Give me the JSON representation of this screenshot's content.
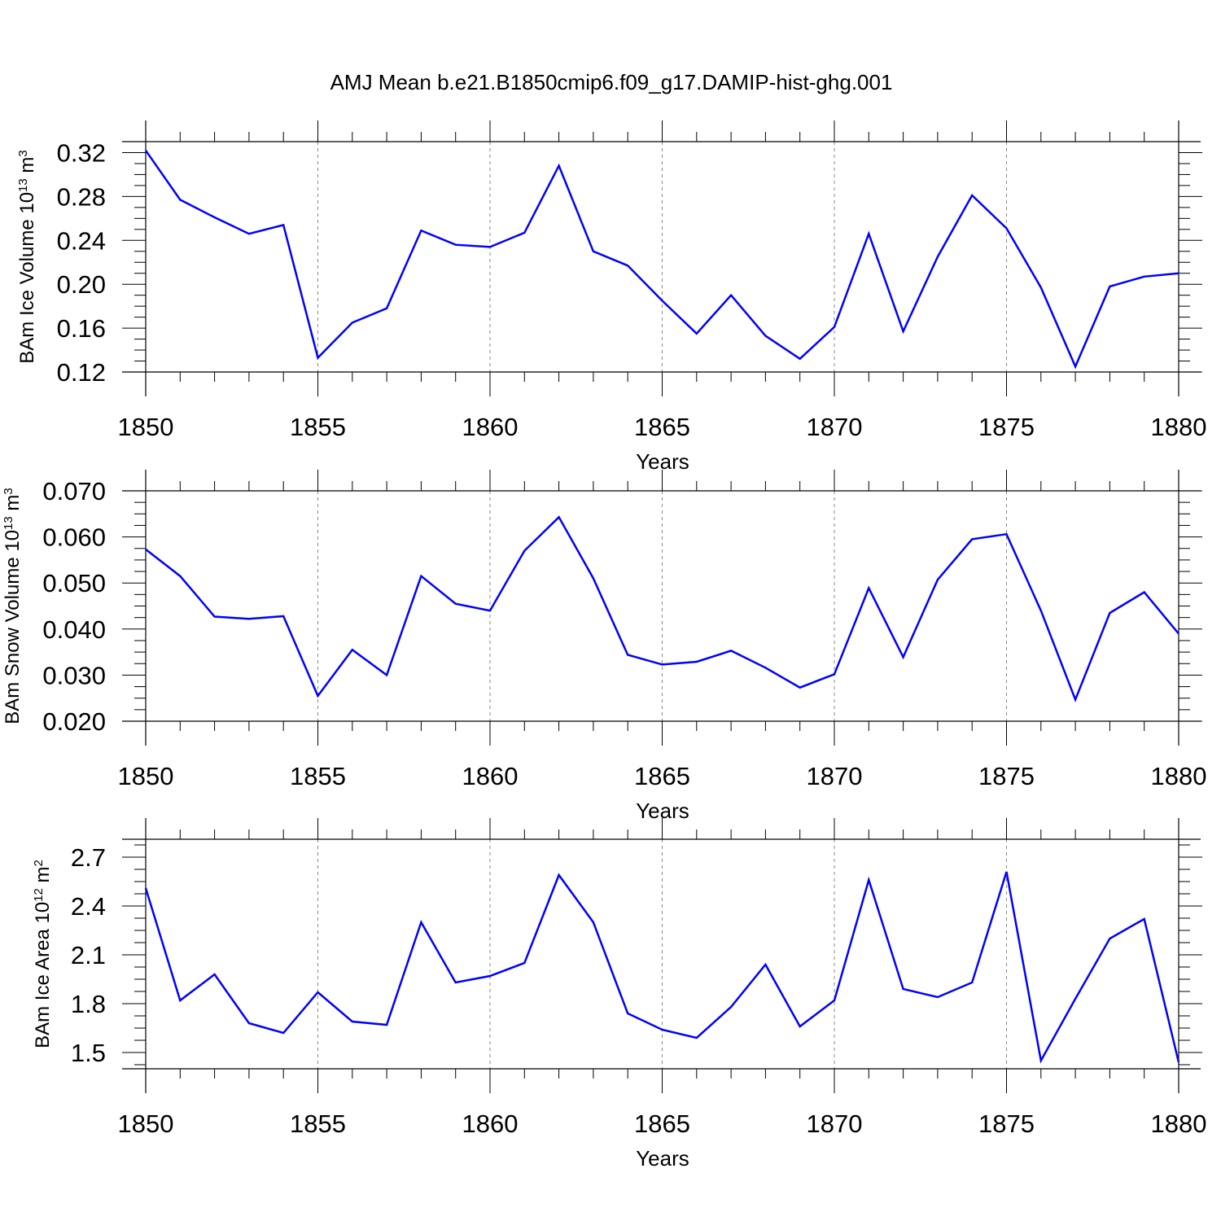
{
  "chart_data": [
    {
      "type": "line",
      "panel": "top",
      "title": "AMJ Mean b.e21.B1850cmip6.f09_g17.DAMIP-hist-ghg.001",
      "ylabel_main": "BAm Ice Volume 10",
      "ylabel_exp": "13",
      "ylabel_unit": "m",
      "ylabel_unit_exp": "3",
      "xlabel": "Years",
      "xlim": [
        1850,
        1880
      ],
      "ylim": [
        0.12,
        0.33
      ],
      "yticks": [
        0.12,
        0.16,
        0.2,
        0.24,
        0.28,
        0.32
      ],
      "ytick_labels": [
        "0.12",
        "0.16",
        "0.20",
        "0.24",
        "0.28",
        "0.32"
      ],
      "xticks": [
        1850,
        1855,
        1860,
        1865,
        1870,
        1875,
        1880
      ],
      "xtick_labels": [
        "1850",
        "1855",
        "1860",
        "1865",
        "1870",
        "1875",
        "1880"
      ],
      "grid": "x-dashed",
      "color": "#0000ff",
      "x": [
        1850,
        1851,
        1852,
        1853,
        1854,
        1855,
        1856,
        1857,
        1858,
        1859,
        1860,
        1861,
        1862,
        1863,
        1864,
        1865,
        1866,
        1867,
        1868,
        1869,
        1870,
        1871,
        1872,
        1873,
        1874,
        1875,
        1876,
        1877,
        1878,
        1879,
        1880
      ],
      "values": [
        0.322,
        0.277,
        0.261,
        0.246,
        0.254,
        0.133,
        0.165,
        0.178,
        0.249,
        0.236,
        0.234,
        0.247,
        0.308,
        0.23,
        0.217,
        0.185,
        0.155,
        0.19,
        0.153,
        0.132,
        0.161,
        0.246,
        0.157,
        0.225,
        0.281,
        0.251,
        0.197,
        0.125,
        0.198,
        0.207,
        0.21
      ]
    },
    {
      "type": "line",
      "panel": "middle",
      "ylabel_main": "BAm Snow Volume 10",
      "ylabel_exp": "13",
      "ylabel_unit": "m",
      "ylabel_unit_exp": "3",
      "xlabel": "Years",
      "xlim": [
        1850,
        1880
      ],
      "ylim": [
        0.02,
        0.07
      ],
      "yticks": [
        0.02,
        0.03,
        0.04,
        0.05,
        0.06,
        0.07
      ],
      "ytick_labels": [
        "0.020",
        "0.030",
        "0.040",
        "0.050",
        "0.060",
        "0.070"
      ],
      "xticks": [
        1850,
        1855,
        1860,
        1865,
        1870,
        1875,
        1880
      ],
      "xtick_labels": [
        "1850",
        "1855",
        "1860",
        "1865",
        "1870",
        "1875",
        "1880"
      ],
      "grid": "x-dashed",
      "color": "#0000ff",
      "x": [
        1850,
        1851,
        1852,
        1853,
        1854,
        1855,
        1856,
        1857,
        1858,
        1859,
        1860,
        1861,
        1862,
        1863,
        1864,
        1865,
        1866,
        1867,
        1868,
        1869,
        1870,
        1871,
        1872,
        1873,
        1874,
        1875,
        1876,
        1877,
        1878,
        1879,
        1880
      ],
      "values": [
        0.0573,
        0.0515,
        0.0427,
        0.0422,
        0.0428,
        0.0255,
        0.0355,
        0.03,
        0.0515,
        0.0455,
        0.044,
        0.057,
        0.0643,
        0.051,
        0.0344,
        0.0323,
        0.0329,
        0.0353,
        0.0316,
        0.0273,
        0.0302,
        0.0489,
        0.0339,
        0.0507,
        0.0595,
        0.0606,
        0.044,
        0.0247,
        0.0435,
        0.048,
        0.039
      ]
    },
    {
      "type": "line",
      "panel": "bottom",
      "ylabel_main": "BAm Ice Area 10",
      "ylabel_exp": "12",
      "ylabel_unit": "m",
      "ylabel_unit_exp": "2",
      "xlabel": "Years",
      "xlim": [
        1850,
        1880
      ],
      "ylim": [
        1.4,
        2.81
      ],
      "yticks": [
        1.5,
        1.8,
        2.1,
        2.4,
        2.7
      ],
      "ytick_labels": [
        "1.5",
        "1.8",
        "2.1",
        "2.4",
        "2.7"
      ],
      "xticks": [
        1850,
        1855,
        1860,
        1865,
        1870,
        1875,
        1880
      ],
      "xtick_labels": [
        "1850",
        "1855",
        "1860",
        "1865",
        "1870",
        "1875",
        "1880"
      ],
      "grid": "x-dashed",
      "color": "#0000ff",
      "x": [
        1850,
        1851,
        1852,
        1853,
        1854,
        1855,
        1856,
        1857,
        1858,
        1859,
        1860,
        1861,
        1862,
        1863,
        1864,
        1865,
        1866,
        1867,
        1868,
        1869,
        1870,
        1871,
        1872,
        1873,
        1874,
        1875,
        1876,
        1877,
        1878,
        1879,
        1880
      ],
      "values": [
        2.51,
        1.82,
        1.98,
        1.68,
        1.62,
        1.87,
        1.69,
        1.67,
        2.3,
        1.93,
        1.97,
        2.05,
        2.59,
        2.3,
        1.74,
        1.64,
        1.59,
        1.78,
        2.04,
        1.66,
        1.82,
        2.56,
        1.89,
        1.84,
        1.93,
        2.61,
        1.45,
        1.83,
        2.2,
        2.32,
        1.44
      ]
    }
  ]
}
